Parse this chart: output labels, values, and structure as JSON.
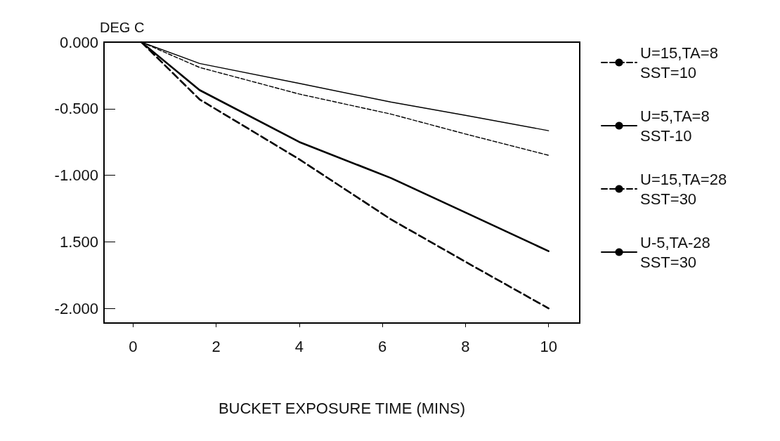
{
  "chart_data": {
    "type": "line",
    "xlabel": "BUCKET EXPOSURE TIME (MINS)",
    "ylabel": "DEG C",
    "x": [
      0.2,
      1.6,
      4,
      6.2,
      8,
      10
    ],
    "xlim": [
      -0.7,
      10.75
    ],
    "xticks": [
      0,
      2,
      4,
      6,
      8,
      10
    ],
    "ylim": [
      -2.11,
      0
    ],
    "yticks": [
      {
        "value": 0,
        "label": "0.000"
      },
      {
        "value": -0.5,
        "label": "-0.500"
      },
      {
        "value": -1,
        "label": "-1.000"
      },
      {
        "value": -1.5,
        "label": "1.500"
      },
      {
        "value": -2,
        "label": "-2.000"
      }
    ],
    "series": [
      {
        "name": "U=15,TA=8\nSST=10",
        "color": "#000000",
        "line_style": "dashed",
        "values": [
          0,
          -0.19,
          -0.39,
          -0.54,
          -0.69,
          -0.85
        ]
      },
      {
        "name": "U=5,TA=8\nSST-10",
        "color": "#000000",
        "line_style": "solid",
        "values": [
          0,
          -0.16,
          -0.31,
          -0.45,
          -0.55,
          -0.665
        ]
      },
      {
        "name": "U=15,TA=28\nSST=30",
        "color": "#000000",
        "line_style": "dashed",
        "values": [
          0,
          -0.43,
          -0.88,
          -1.33,
          -1.65,
          -2.0
        ]
      },
      {
        "name": "U-5,TA-28\nSST=30",
        "color": "#000000",
        "line_style": "solid",
        "values": [
          0,
          -0.36,
          -0.75,
          -1.02,
          -1.28,
          -1.57
        ]
      }
    ],
    "legend": "right",
    "grid": false,
    "marker": "none"
  }
}
